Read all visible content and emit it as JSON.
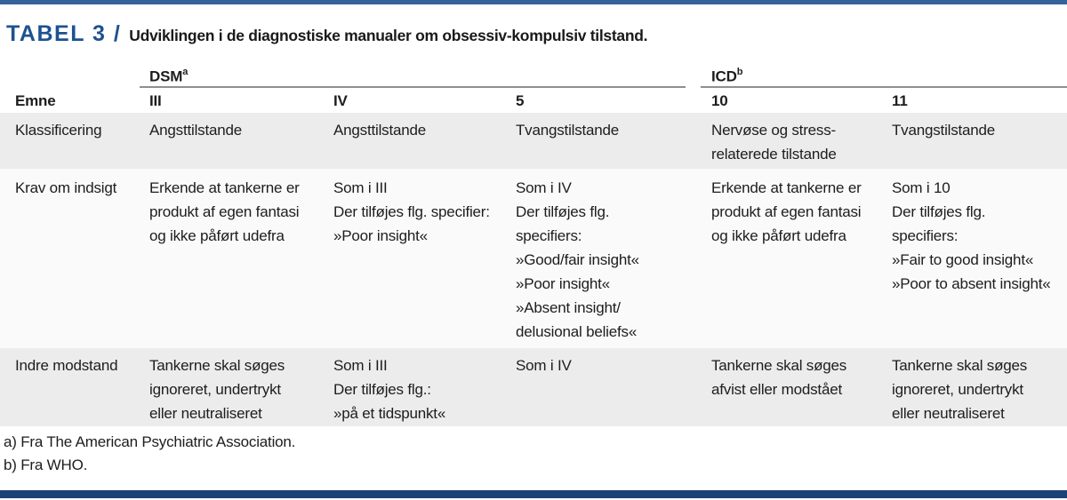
{
  "header": {
    "label": "TABEL 3 /",
    "title": "Udviklingen i de diagnostiske manualer om obsessiv-kompulsiv tilstand."
  },
  "colors": {
    "top_bar_blue": "#35639a",
    "bottom_bar_blue": "#1c4377",
    "title_blue": "#1d5291",
    "row_band_gray": "#ececec",
    "row_band_light": "#fafafa",
    "header_rule_gray": "#8f8f8f",
    "text": "#1d1d1d"
  },
  "table": {
    "groups": [
      {
        "label": "DSM",
        "sup": "a"
      },
      {
        "label": "ICD",
        "sup": "b"
      }
    ],
    "emne_header": "Emne",
    "column_headers": [
      "III",
      "IV",
      "5",
      "10",
      "11"
    ],
    "rows": [
      {
        "emne": "Klassificering",
        "cells": [
          [
            "Angsttilstande"
          ],
          [
            "Angsttilstande"
          ],
          [
            "Tvangstilstande"
          ],
          [
            "Nervøse og stress-",
            "relaterede tilstande"
          ],
          [
            "Tvangstilstande"
          ]
        ]
      },
      {
        "emne": "Krav om indsigt",
        "cells": [
          [
            "Erkende at tankerne er",
            "produkt af egen fantasi",
            "og ikke påført udefra"
          ],
          [
            "Som i III",
            "Der tilføjes flg. specifier:",
            "»Poor insight«"
          ],
          [
            "Som i IV",
            "Der tilføjes flg.",
            "specifiers:",
            "»Good/fair insight«",
            "»Poor insight«",
            "»Absent insight/",
            "delusional beliefs«"
          ],
          [
            "Erkende at tankerne er",
            "produkt af egen fantasi",
            "og ikke påført udefra"
          ],
          [
            "Som i 10",
            "Der tilføjes flg.",
            "specifiers:",
            "»Fair to good insight«",
            "»Poor to absent insight«"
          ]
        ]
      },
      {
        "emne": "Indre modstand",
        "cells": [
          [
            "Tankerne skal søges",
            "ignoreret, undertrykt",
            "eller neutraliseret"
          ],
          [
            "Som i III",
            "Der tilføjes flg.:",
            "»på et tidspunkt«"
          ],
          [
            "Som i IV"
          ],
          [
            "Tankerne skal søges",
            "afvist eller modstået"
          ],
          [
            "Tankerne skal søges",
            "ignoreret, undertrykt",
            "eller neutraliseret"
          ]
        ]
      }
    ],
    "footnotes": [
      "a) Fra The American Psychiatric Association.",
      "b) Fra WHO."
    ]
  }
}
